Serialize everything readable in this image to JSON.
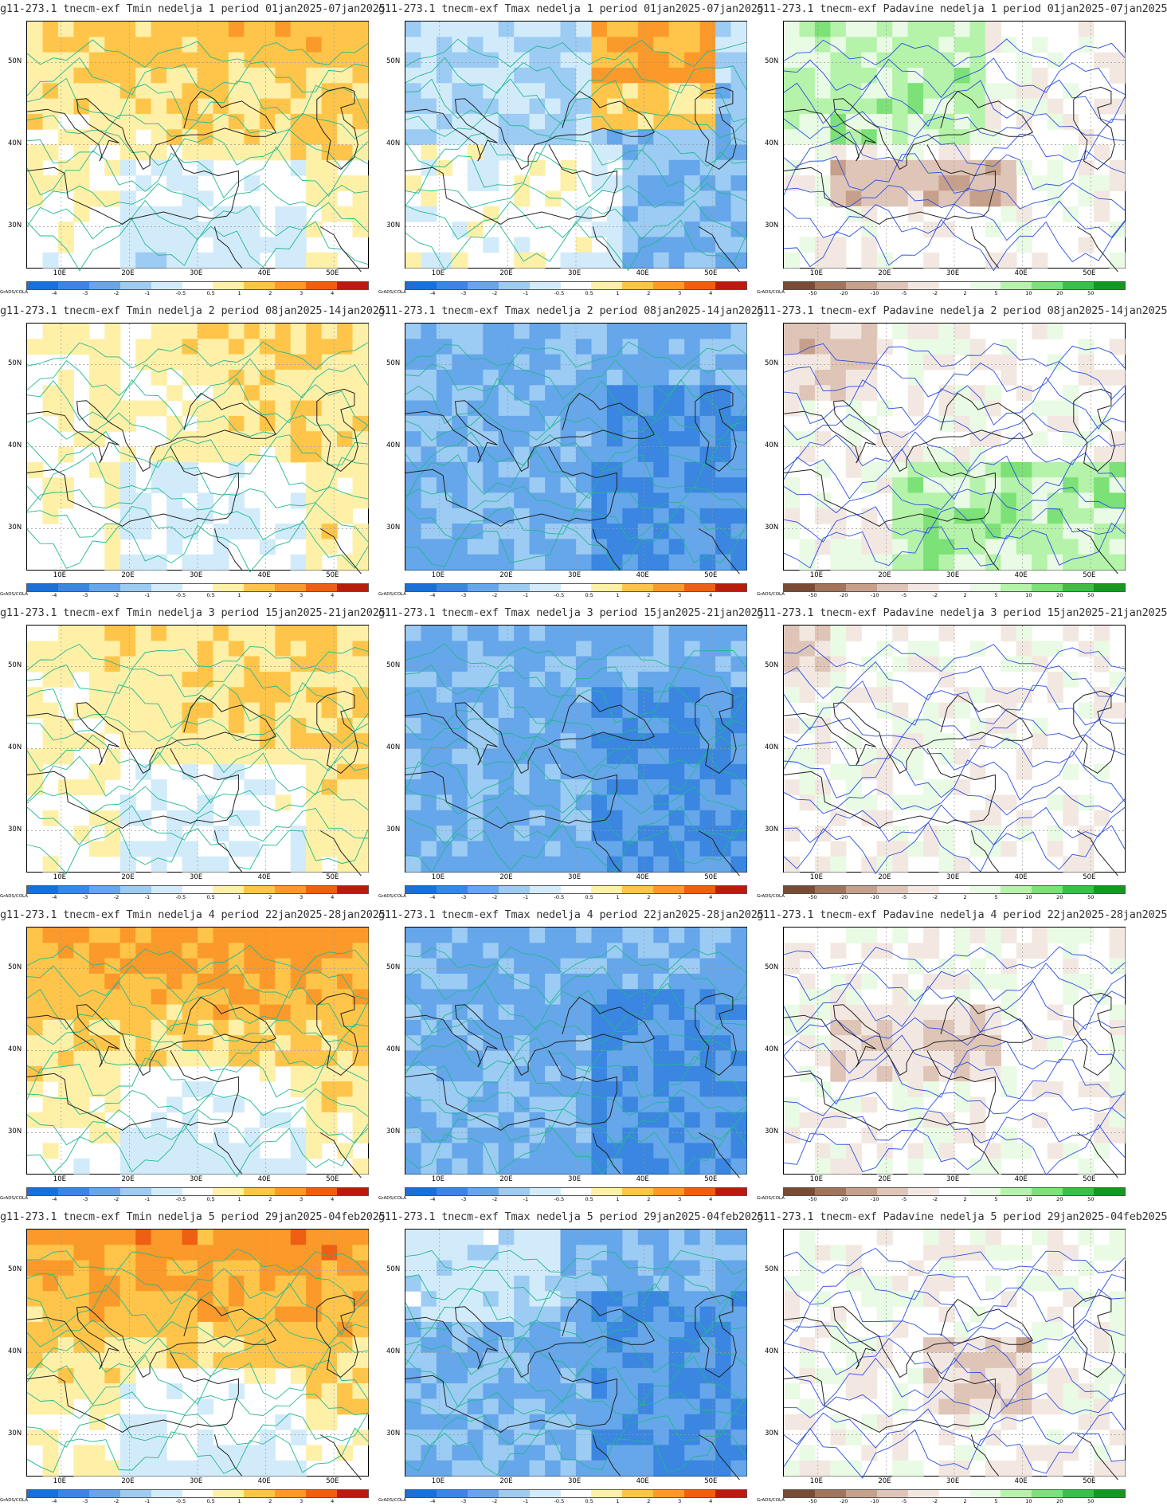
{
  "rows": [
    {
      "week": "1",
      "titles": [
        "g11-273.1 tnecm-exf Tmin nedelja 1 period 01jan2025-07jan2025",
        "g11-273.1 tnecm-exf Tmax nedelja 1 period 01jan2025-07jan2025",
        "g11-273.1 tnecm-exf Padavine nedelja 1 period 01jan2025-07jan2025"
      ]
    },
    {
      "week": "2",
      "titles": [
        "g11-273.1 tnecm-exf Tmin nedelja 2 period 08jan2025-14jan2025",
        "g11-273.1 tnecm-exf Tmax nedelja 2 period 08jan2025-14jan2025",
        "g11-273.1 tnecm-exf Padavine nedelja 2 period 08jan2025-14jan2025"
      ]
    },
    {
      "week": "3",
      "titles": [
        "g11-273.1 tnecm-exf Tmin nedelja 3 period 15jan2025-21jan2025",
        "g11-273.1 tnecm-exf Tmax nedelja 3 period 15jan2025-21jan2025",
        "g11-273.1 tnecm-exf Padavine nedelja 3 period 15jan2025-21jan2025"
      ]
    },
    {
      "week": "4",
      "titles": [
        "g11-273.1 tnecm-exf Tmin nedelja 4 period 22jan2025-28jan2025",
        "g11-273.1 tnecm-exf Tmax nedelja 4 period 22jan2025-28jan2025",
        "g11-273.1 tnecm-exf Padavine nedelja 4 period 22jan2025-28jan2025"
      ]
    },
    {
      "week": "5",
      "titles": [
        "g11-273.1 tnecm-exf Tmin nedelja 5 period 29jan2025-04feb2025",
        "g11-273.1 tnecm-exf Tmax nedelja 5 period 29jan2025-04feb2025",
        "g11-273.1 tnecm-exf Padavine nedelja 5 period 29jan2025-04feb2025"
      ]
    }
  ],
  "axes": {
    "lat_labels": [
      "50N",
      "40N",
      "30N"
    ],
    "lon_labels": [
      "10E",
      "20E",
      "30E",
      "40E",
      "50E"
    ],
    "lat_range": [
      25,
      55
    ],
    "lon_range": [
      5,
      55
    ]
  },
  "grads_label": "GrADS/COLA",
  "temp_colorbar": {
    "labels": [
      "-4",
      "-3",
      "-2",
      "-1",
      "-0.5",
      "0.5",
      "1",
      "2",
      "3",
      "4"
    ],
    "colors": [
      "#1a6fd8",
      "#3a86e0",
      "#66a6ea",
      "#9ccbf3",
      "#d2ebfa",
      "#ffffff",
      "#fff0a8",
      "#ffc54a",
      "#fb9a2a",
      "#ee5f14",
      "#bb1b0a"
    ]
  },
  "precip_colorbar": {
    "labels": [
      "-50",
      "-20",
      "-10",
      "-5",
      "-2",
      "2",
      "5",
      "10",
      "20",
      "50"
    ],
    "colors": [
      "#7a4a33",
      "#a27459",
      "#c6a08b",
      "#dfc5b7",
      "#f3e8e1",
      "#ffffff",
      "#e9fbe4",
      "#b5f2aa",
      "#7ce176",
      "#3fbe46",
      "#16981e"
    ]
  }
}
